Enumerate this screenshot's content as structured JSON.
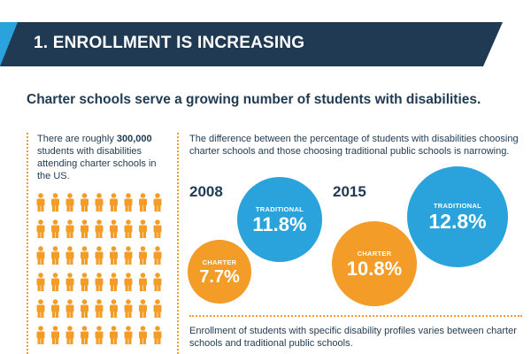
{
  "banner": {
    "title": "1. ENROLLMENT IS INCREASING",
    "color": "#1f3a52"
  },
  "subtitle": "Charter schools serve a growing number of students with disabilities.",
  "intro": {
    "part1": "There are roughly ",
    "highlight": "300,000",
    "part2": " students with disabilities attending charter schools in the US."
  },
  "people_grid": {
    "icon": "person-icon",
    "color": "#f39c28",
    "columns": 9,
    "rows": 6
  },
  "difference_text": "The difference between the percentage of students with disabilities choosing charter schools and those choosing traditional public schools is narrowing.",
  "years": [
    {
      "year": "2008",
      "traditional": {
        "label": "TRADITIONAL",
        "value": "11.8%"
      },
      "charter": {
        "label": "CHARTER",
        "value": "7.7%"
      }
    },
    {
      "year": "2015",
      "traditional": {
        "label": "TRADITIONAL",
        "value": "12.8%"
      },
      "charter": {
        "label": "CHARTER",
        "value": "10.8%"
      }
    }
  ],
  "colors": {
    "traditional": "#2aa3dc",
    "charter": "#f39c28",
    "text": "#1f3a52"
  },
  "profile_text": "Enrollment of students with specific disability profiles varies between charter schools and traditional public schools."
}
